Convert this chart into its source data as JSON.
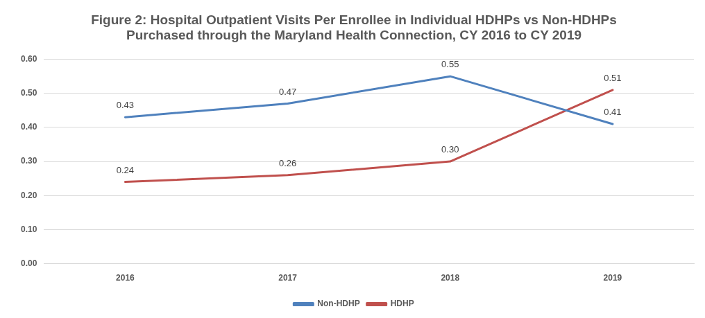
{
  "chart_data": {
    "type": "line",
    "title": "Figure 2: Hospital Outpatient Visits Per Enrollee in Individual HDHPs vs Non-HDHPs\nPurchased through the Maryland Health Connection, CY 2016 to CY 2019",
    "categories": [
      "2016",
      "2017",
      "2018",
      "2019"
    ],
    "series": [
      {
        "name": "Non-HDHP",
        "color": "#4f81bd",
        "values": [
          0.43,
          0.47,
          0.55,
          0.41
        ],
        "value_labels": [
          "0.43",
          "0.47",
          "0.55",
          "0.41"
        ]
      },
      {
        "name": "HDHP",
        "color": "#c0504d",
        "values": [
          0.24,
          0.26,
          0.3,
          0.51
        ],
        "value_labels": [
          "0.24",
          "0.26",
          "0.30",
          "0.51"
        ]
      }
    ],
    "ylim": [
      0,
      0.6
    ],
    "yticks": [
      {
        "value": 0,
        "label": "0.00"
      },
      {
        "value": 0.1,
        "label": "0.10"
      },
      {
        "value": 0.2,
        "label": "0.20"
      },
      {
        "value": 0.3,
        "label": "0.30"
      },
      {
        "value": 0.4,
        "label": "0.40"
      },
      {
        "value": 0.5,
        "label": "0.50"
      },
      {
        "value": 0.6,
        "label": "0.60"
      }
    ],
    "grid": "y",
    "legend": "bottom",
    "marker": "none",
    "line_style": "solid"
  }
}
